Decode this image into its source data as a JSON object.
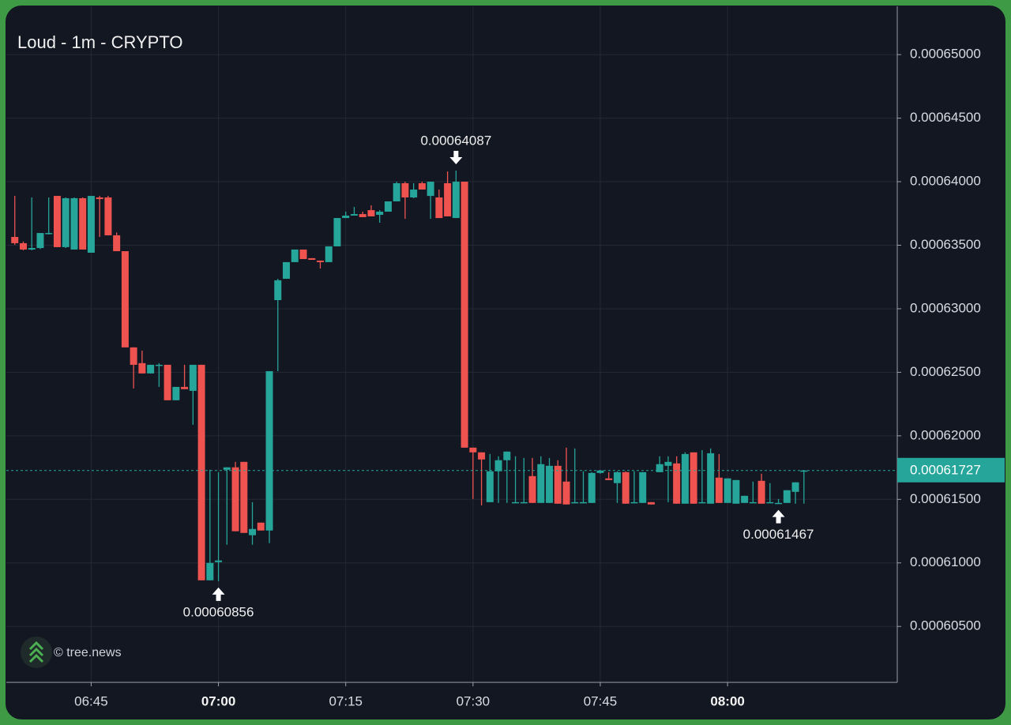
{
  "chart_data": {
    "type": "candlestick",
    "title": "Loud - 1m - CRYPTO",
    "watermark": "© tree.news",
    "x": [
      "06:36",
      "06:37",
      "06:38",
      "06:39",
      "06:40",
      "06:41",
      "06:42",
      "06:43",
      "06:44",
      "06:45",
      "06:46",
      "06:47",
      "06:48",
      "06:49",
      "06:50",
      "06:51",
      "06:52",
      "06:53",
      "06:54",
      "06:55",
      "06:56",
      "06:57",
      "06:58",
      "06:59",
      "07:00",
      "07:01",
      "07:02",
      "07:03",
      "07:04",
      "07:05",
      "07:06",
      "07:07",
      "07:08",
      "07:09",
      "07:10",
      "07:11",
      "07:12",
      "07:13",
      "07:14",
      "07:15",
      "07:16",
      "07:17",
      "07:18",
      "07:19",
      "07:20",
      "07:21",
      "07:22",
      "07:23",
      "07:24",
      "07:25",
      "07:26",
      "07:27",
      "07:28",
      "07:29",
      "07:30",
      "07:31",
      "07:32",
      "07:33",
      "07:34",
      "07:35",
      "07:36",
      "07:37",
      "07:38",
      "07:39",
      "07:40",
      "07:41",
      "07:42",
      "07:43",
      "07:44",
      "07:45",
      "07:46",
      "07:47",
      "07:48",
      "07:49",
      "07:50",
      "07:51",
      "07:52",
      "07:53",
      "07:54",
      "07:55",
      "07:56",
      "07:57",
      "07:58",
      "07:59",
      "08:00",
      "08:01",
      "08:02",
      "08:03",
      "08:04",
      "08:05",
      "08:06",
      "08:07",
      "08:08",
      "08:09"
    ],
    "open": [
      0.00063565,
      0.00063516,
      0.00063466,
      0.00063478,
      0.0006359,
      0.00063888,
      0.00063485,
      0.00063466,
      0.0006387,
      0.00063441,
      0.00063876,
      0.00063876,
      0.00063578,
      0.00063453,
      0.00062696,
      0.00062572,
      0.00062491,
      0.00062553,
      0.00062559,
      0.0006228,
      0.00062385,
      0.00062354,
      0.00062559,
      0.00060863,
      0.00061006,
      0.00061733,
      0.00061752,
      0.00061795,
      0.00061218,
      0.00061317,
      0.00061255,
      0.00063068,
      0.00063236,
      0.00063367,
      0.00063466,
      0.00063398,
      0.00063379,
      0.00063367,
      0.00063491,
      0.00063714,
      0.00063733,
      0.00063745,
      0.00063776,
      0.00063739,
      0.00063764,
      0.00063845,
      0.00063988,
      0.00063876,
      0.00063988,
      0.00063888,
      0.00063876,
      0.00063988,
      0.00063714,
      0.00064,
      0.00061907,
      0.0006187,
      0.00061478,
      0.00061721,
      0.00061808,
      0.00061472,
      0.00061472,
      0.00061683,
      0.00061472,
      0.00061472,
      0.00061764,
      0.0006164,
      0.00061472,
      0.00061472,
      0.00061472,
      0.00061708,
      0.00061665,
      0.00061628,
      0.00061714,
      0.00061472,
      0.00061472,
      0.00061478,
      0.00061714,
      0.00061764,
      0.00061783,
      0.00061466,
      0.0006187,
      0.00061472,
      0.00061466,
      0.00061671,
      0.00061472,
      0.00061466,
      0.00061472,
      0.00061472,
      0.00061646,
      0.00061472,
      0.00061467,
      0.00061472,
      0.00061559,
      0.00061721
    ],
    "high": [
      0.00063888,
      0.0006353,
      0.00063876,
      0.00063596,
      0.00063876,
      0.00063888,
      0.00063876,
      0.00063876,
      0.00063876,
      0.00063888,
      0.00063888,
      0.00063888,
      0.000636,
      0.00063453,
      0.00062696,
      0.00062671,
      0.00062559,
      0.00062572,
      0.00062559,
      0.00062385,
      0.00062559,
      0.00062559,
      0.00062559,
      0.00061733,
      0.00061714,
      0.00061752,
      0.00061795,
      0.00061795,
      0.00061478,
      0.00061317,
      0.00062509,
      0.00063236,
      0.00063367,
      0.00063466,
      0.00063466,
      0.00063398,
      0.00063379,
      0.00063491,
      0.00063714,
      0.00063764,
      0.00063801,
      0.00063764,
      0.00063814,
      0.00063776,
      0.00063845,
      0.00064,
      0.00064,
      0.00063988,
      0.00064,
      0.00064,
      0.00063938,
      0.00064081,
      0.00064087,
      0.00064,
      0.00061907,
      0.0006187,
      0.00061857,
      0.00061839,
      0.00061876,
      0.00061839,
      0.00061826,
      0.00061826,
      0.00061839,
      0.00061826,
      0.00061808,
      0.00061907,
      0.00061901,
      0.00061721,
      0.00061714,
      0.00061727,
      0.00061714,
      0.00061721,
      0.00061721,
      0.00061721,
      0.00061714,
      0.00061478,
      0.00061839,
      0.00061839,
      0.00061839,
      0.0006187,
      0.0006187,
      0.00061888,
      0.00061901,
      0.00061857,
      0.00061665,
      0.00061652,
      0.00061528,
      0.0006164,
      0.00061702,
      0.00061628,
      0.00061503,
      0.00061572,
      0.00061634,
      0.00061727
    ],
    "low": [
      0.00063503,
      0.0006346,
      0.0006346,
      0.0006347,
      0.00063585,
      0.00063485,
      0.00063478,
      0.00063466,
      0.00063466,
      0.00063441,
      0.00063565,
      0.00063578,
      0.00063453,
      0.00062696,
      0.00062373,
      0.00062491,
      0.00062491,
      0.00062385,
      0.0006228,
      0.0006228,
      0.00062367,
      0.00062087,
      0.00060863,
      0.00060863,
      0.00060856,
      0.00061143,
      0.00061249,
      0.00061236,
      0.00061143,
      0.00061255,
      0.00061155,
      0.00062509,
      0.00063236,
      0.00063367,
      0.00063391,
      0.00063385,
      0.00063317,
      0.00063367,
      0.00063491,
      0.00063714,
      0.00063733,
      0.00063721,
      0.00063727,
      0.00063677,
      0.00063764,
      0.00063845,
      0.00063708,
      0.0006387,
      0.00063938,
      0.00063708,
      0.00063714,
      0.00063727,
      0.00063714,
      0.00061907,
      0.00061503,
      0.00061453,
      0.00061478,
      0.00061472,
      0.00061472,
      0.00061472,
      0.00061472,
      0.00061472,
      0.00061472,
      0.00061472,
      0.00061466,
      0.0006146,
      0.00061472,
      0.00061472,
      0.00061472,
      0.00061702,
      0.00061652,
      0.00061472,
      0.00061466,
      0.00061472,
      0.00061472,
      0.0006146,
      0.00061714,
      0.00061478,
      0.00061466,
      0.00061466,
      0.00061466,
      0.00061472,
      0.00061466,
      0.00061472,
      0.00061472,
      0.00061466,
      0.00061472,
      0.00061472,
      0.00061466,
      0.00061472,
      0.00061467,
      0.00061472,
      0.00061466,
      0.00061466
    ],
    "close": [
      0.00063516,
      0.00063466,
      0.00063478,
      0.00063596,
      0.00063596,
      0.00063485,
      0.0006387,
      0.0006387,
      0.00063466,
      0.00063888,
      0.00063863,
      0.00063578,
      0.00063453,
      0.00062696,
      0.00062559,
      0.00062491,
      0.00062559,
      0.00062559,
      0.0006228,
      0.00062385,
      0.00062367,
      0.00062559,
      0.00060863,
      0.00061,
      0.00061019,
      0.00061752,
      0.00061249,
      0.00061236,
      0.00061267,
      0.00061255,
      0.00062509,
      0.00063224,
      0.00063367,
      0.00063466,
      0.00063391,
      0.00063385,
      0.00063367,
      0.00063491,
      0.00063714,
      0.00063733,
      0.00063745,
      0.00063721,
      0.00063727,
      0.00063764,
      0.00063845,
      0.00063988,
      0.00063876,
      0.00063938,
      0.00063938,
      0.00064,
      0.00063714,
      0.00063727,
      0.00064,
      0.00061907,
      0.0006187,
      0.00061814,
      0.00061721,
      0.00061808,
      0.00061876,
      0.00061478,
      0.00061478,
      0.00061472,
      0.00061777,
      0.00061764,
      0.00061466,
      0.0006146,
      0.00061478,
      0.00061478,
      0.00061708,
      0.00061727,
      0.00061652,
      0.00061714,
      0.00061466,
      0.00061478,
      0.00061714,
      0.0006146,
      0.00061777,
      0.00061795,
      0.00061466,
      0.00061857,
      0.00061466,
      0.00061478,
      0.00061863,
      0.00061472,
      0.00061665,
      0.00061652,
      0.00061528,
      0.00061478,
      0.00061466,
      0.00061478,
      0.00061472,
      0.00061572,
      0.00061634,
      0.00061727
    ],
    "up_color": "#26a69a",
    "down_color": "#ef5350",
    "xlim": [
      "06:35",
      "08:20"
    ],
    "xticks": [
      "06:45",
      "07:00",
      "07:15",
      "07:30",
      "07:45",
      "08:00"
    ],
    "ylim": [
      0.0006006,
      0.0006538
    ],
    "yticks": [
      {
        "value": 0.000605,
        "label": "0.00060500"
      },
      {
        "value": 0.00061,
        "label": "0.00061000"
      },
      {
        "value": 0.000615,
        "label": "0.00061500"
      },
      {
        "value": 0.00062,
        "label": "0.00062000"
      },
      {
        "value": 0.000625,
        "label": "0.00062500"
      },
      {
        "value": 0.00063,
        "label": "0.00063000"
      },
      {
        "value": 0.000635,
        "label": "0.00063500"
      },
      {
        "value": 0.00064,
        "label": "0.00064000"
      },
      {
        "value": 0.000645,
        "label": "0.00064500"
      },
      {
        "value": 0.00065,
        "label": "0.00065000"
      }
    ],
    "grid": true,
    "last_price": 0.00061727,
    "annotations": [
      {
        "x": "07:28",
        "value": 0.00064087,
        "direction": "down"
      },
      {
        "x": "07:00",
        "value": 0.00060856,
        "direction": "up"
      },
      {
        "x": "08:06",
        "value": 0.00061467,
        "direction": "up"
      }
    ]
  }
}
